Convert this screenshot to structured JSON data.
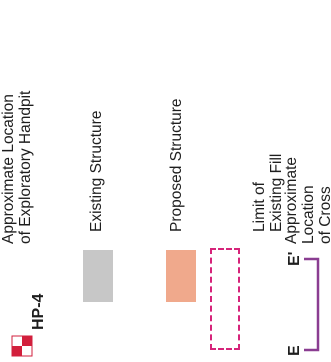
{
  "legend": {
    "handpit": {
      "label": "HP-4",
      "description": "Approximate Location\nof Exploratory Handpit",
      "icon": "handpit-icon",
      "colors": {
        "red": "#d21f3c",
        "white": "#ffffff"
      }
    },
    "existing_structure": {
      "description": "Existing Structure",
      "color": "#c7c7c7"
    },
    "proposed_structure": {
      "description": "Proposed Structure",
      "color": "#f0a98c"
    },
    "existing_fill": {
      "description": "Limit of Existing Fill",
      "border_color": "#d6247a"
    },
    "cross_section": {
      "start_label": "E",
      "end_label": "E'",
      "description": "Approximate Location\nof Cross Section",
      "line_color": "#8a3d91"
    }
  }
}
